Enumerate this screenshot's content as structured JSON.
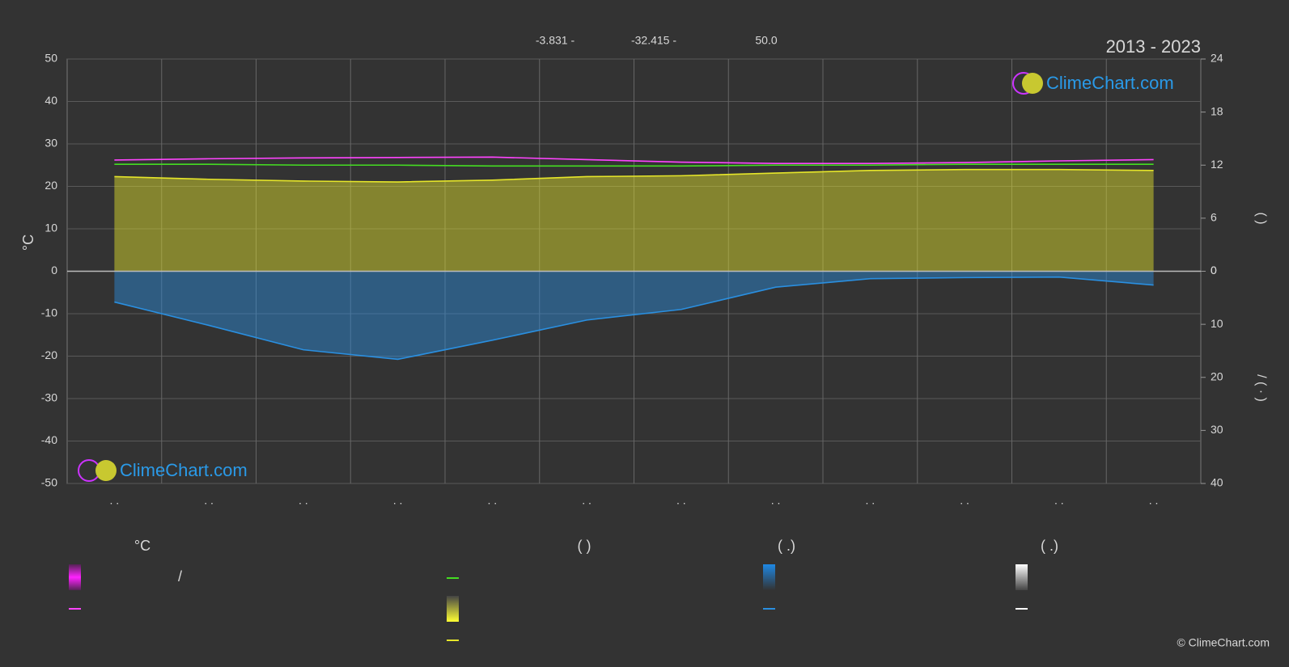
{
  "chart_data": {
    "type": "climate",
    "title": "2013 - 2023",
    "brand": "ClimeChart.com",
    "copyright": "© ClimeChart.com",
    "annotations": [
      "-3.831 -",
      "-32.415 -",
      "50.0"
    ],
    "ylabel": "°C",
    "y2label": "(   )",
    "y3label": "/  ( · )",
    "categories": [
      ". .",
      ". .",
      ". .",
      ". .",
      ". .",
      ". .",
      ". .",
      ". .",
      ". .",
      ". .",
      ". .",
      ". ."
    ],
    "ylim": [
      -50,
      50
    ],
    "yticks": [
      -50,
      -40,
      -30,
      -20,
      -10,
      0,
      10,
      20,
      30,
      40,
      50
    ],
    "y2lim": [
      0,
      24
    ],
    "y2ticks": [
      0,
      6,
      12,
      18,
      24
    ],
    "y3lim": [
      0,
      40
    ],
    "y3ticks": [
      0,
      10,
      20,
      30,
      40
    ],
    "grid": true,
    "series": [
      {
        "color": "#ff44ff",
        "values": [
          26.2,
          26.5,
          26.7,
          26.8,
          26.9,
          26.3,
          25.7,
          25.4,
          25.4,
          25.6,
          26.0,
          26.3
        ]
      },
      {
        "color": "#44dd22",
        "axis": "y2",
        "values": [
          12.1,
          12.1,
          12.0,
          12.0,
          11.9,
          11.9,
          11.9,
          12.0,
          12.0,
          12.1,
          12.1,
          12.1
        ]
      },
      {
        "color": "#e6e62a",
        "axis": "y2",
        "area": true,
        "values": [
          10.7,
          10.4,
          10.2,
          10.1,
          10.3,
          10.7,
          10.8,
          11.1,
          11.4,
          11.5,
          11.5,
          11.4
        ]
      },
      {
        "color": "#2a8fe0",
        "axis": "y3",
        "area": true,
        "values": [
          5.8,
          10.2,
          14.8,
          16.6,
          13.0,
          9.2,
          7.2,
          3.0,
          1.4,
          1.2,
          1.1,
          2.6
        ]
      }
    ],
    "legend_headers": [
      "°C",
      "(      )",
      "(   .)",
      "(   .)"
    ],
    "legend_texts": [
      "/"
    ]
  }
}
